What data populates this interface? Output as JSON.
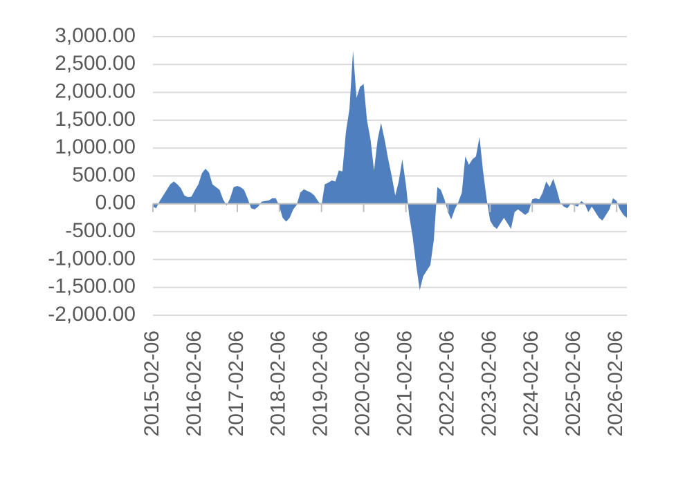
{
  "chart_data": {
    "type": "area",
    "color": "#4f7fbe",
    "grid": true,
    "xlim": [
      "2015-02-06",
      "2026-05-06"
    ],
    "xticks": [
      "2015-02-06",
      "2016-02-06",
      "2017-02-06",
      "2018-02-06",
      "2019-02-06",
      "2020-02-06",
      "2021-02-06",
      "2022-02-06",
      "2023-02-06",
      "2024-02-06",
      "2025-02-06",
      "2026-02-06"
    ],
    "ylim": [
      -2000,
      3000
    ],
    "yticks": [
      {
        "value": -2000,
        "label": "-2,000.00"
      },
      {
        "value": -1500,
        "label": "-1,500.00"
      },
      {
        "value": -1000,
        "label": "-1,000.00"
      },
      {
        "value": -500,
        "label": "-500.00"
      },
      {
        "value": 0,
        "label": "0.00"
      },
      {
        "value": 500,
        "label": "500.00"
      },
      {
        "value": 1000,
        "label": "1,000.00"
      },
      {
        "value": 1500,
        "label": "1,500.00"
      },
      {
        "value": 2000,
        "label": "2,000.00"
      },
      {
        "value": 2500,
        "label": "2,500.00"
      },
      {
        "value": 3000,
        "label": "3,000.00"
      }
    ],
    "x": [
      "2015-02-06",
      "2015-03-06",
      "2015-04-06",
      "2015-05-06",
      "2015-06-06",
      "2015-07-06",
      "2015-08-06",
      "2015-09-06",
      "2015-10-06",
      "2015-11-06",
      "2015-12-06",
      "2016-01-06",
      "2016-02-06",
      "2016-03-06",
      "2016-04-06",
      "2016-05-06",
      "2016-06-06",
      "2016-07-06",
      "2016-08-06",
      "2016-09-06",
      "2016-10-06",
      "2016-11-06",
      "2016-12-06",
      "2017-01-06",
      "2017-02-06",
      "2017-03-06",
      "2017-04-06",
      "2017-05-06",
      "2017-06-06",
      "2017-07-06",
      "2017-08-06",
      "2017-09-06",
      "2017-10-06",
      "2017-11-06",
      "2017-12-06",
      "2018-01-06",
      "2018-02-06",
      "2018-03-06",
      "2018-04-06",
      "2018-05-06",
      "2018-06-06",
      "2018-07-06",
      "2018-08-06",
      "2018-09-06",
      "2018-10-06",
      "2018-11-06",
      "2018-12-06",
      "2019-01-06",
      "2019-02-06",
      "2019-03-06",
      "2019-04-06",
      "2019-05-06",
      "2019-06-06",
      "2019-07-06",
      "2019-08-06",
      "2019-09-06",
      "2019-10-06",
      "2019-11-06",
      "2019-12-06",
      "2020-01-06",
      "2020-02-06",
      "2020-03-06",
      "2020-04-06",
      "2020-05-06",
      "2020-06-06",
      "2020-07-06",
      "2020-08-06",
      "2020-09-06",
      "2020-10-06",
      "2020-11-06",
      "2020-12-06",
      "2021-01-06",
      "2021-02-06",
      "2021-03-06",
      "2021-04-06",
      "2021-05-06",
      "2021-06-06",
      "2021-07-06",
      "2021-08-06",
      "2021-09-06",
      "2021-10-06",
      "2021-11-06",
      "2021-12-06",
      "2022-01-06",
      "2022-02-06",
      "2022-03-06",
      "2022-04-06",
      "2022-05-06",
      "2022-06-06",
      "2022-07-06",
      "2022-08-06",
      "2022-09-06",
      "2022-10-06",
      "2022-11-06",
      "2022-12-06",
      "2023-01-06",
      "2023-02-06",
      "2023-03-06",
      "2023-04-06",
      "2023-05-06",
      "2023-06-06",
      "2023-07-06",
      "2023-08-06",
      "2023-09-06",
      "2023-10-06",
      "2023-11-06",
      "2023-12-06",
      "2024-01-06",
      "2024-02-06",
      "2024-03-06",
      "2024-04-06",
      "2024-05-06",
      "2024-06-06",
      "2024-07-06",
      "2024-08-06",
      "2024-09-06",
      "2024-10-06",
      "2024-11-06",
      "2024-12-06",
      "2025-01-06",
      "2025-02-06",
      "2025-03-06",
      "2025-04-06",
      "2025-05-06",
      "2025-06-06",
      "2025-07-06",
      "2025-08-06",
      "2025-09-06",
      "2025-10-06",
      "2025-11-06",
      "2025-12-06",
      "2026-01-06",
      "2026-02-06",
      "2026-03-06",
      "2026-04-06",
      "2026-05-06"
    ],
    "values": [
      -50,
      -80,
      50,
      150,
      250,
      350,
      400,
      350,
      280,
      150,
      120,
      130,
      250,
      350,
      550,
      630,
      560,
      350,
      300,
      250,
      80,
      -30,
      100,
      300,
      320,
      300,
      250,
      100,
      -80,
      -100,
      -50,
      40,
      50,
      60,
      100,
      100,
      -50,
      -250,
      -320,
      -250,
      -100,
      -20,
      200,
      260,
      230,
      200,
      150,
      50,
      -30,
      350,
      380,
      420,
      400,
      600,
      580,
      1300,
      1700,
      2750,
      1900,
      2100,
      2150,
      1500,
      1150,
      600,
      1150,
      1450,
      1150,
      800,
      500,
      150,
      400,
      800,
      350,
      -200,
      -600,
      -1100,
      -1550,
      -1300,
      -1200,
      -1100,
      -650,
      300,
      250,
      80,
      -150,
      -280,
      -100,
      30,
      200,
      850,
      700,
      800,
      850,
      1200,
      600,
      100,
      -300,
      -400,
      -450,
      -350,
      -250,
      -350,
      -450,
      -150,
      -100,
      -150,
      -200,
      -150,
      80,
      100,
      80,
      200,
      400,
      300,
      450,
      250,
      20,
      -50,
      -80,
      0,
      -30,
      -50,
      50,
      0,
      -150,
      -50,
      -150,
      -250,
      -300,
      -200,
      -100,
      100,
      50,
      -100,
      -200,
      -250
    ]
  }
}
